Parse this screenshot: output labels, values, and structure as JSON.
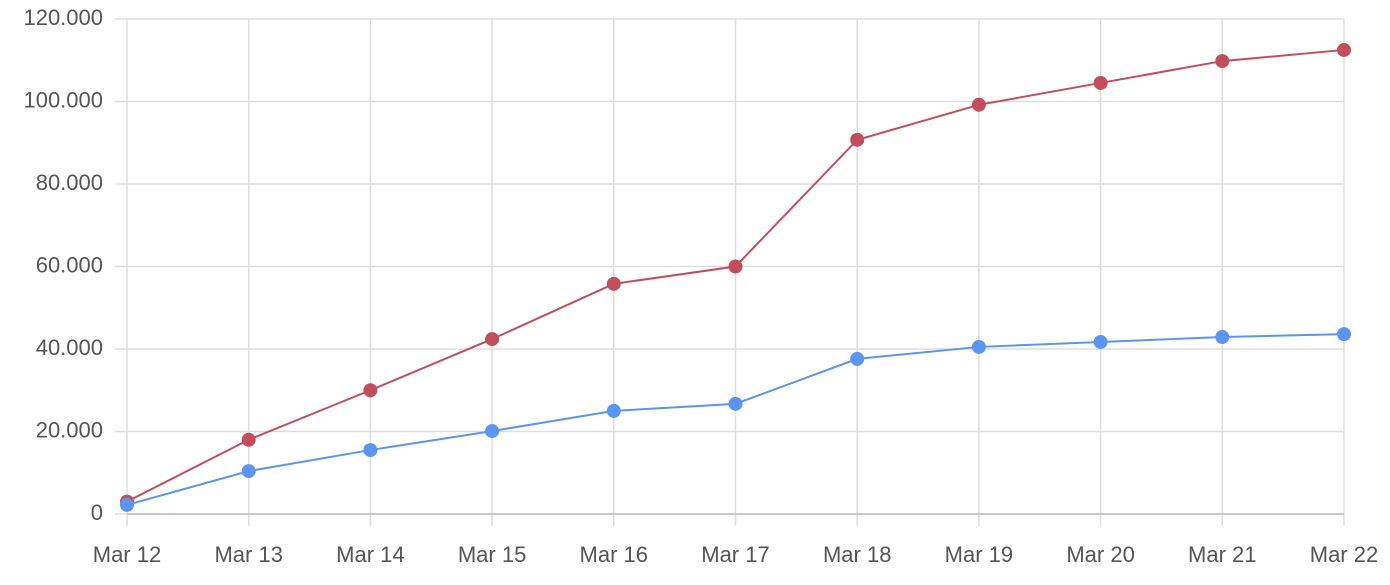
{
  "chart_data": {
    "type": "line",
    "categories": [
      "Mar 12",
      "Mar 13",
      "Mar 14",
      "Mar 15",
      "Mar 16",
      "Mar 17",
      "Mar 18",
      "Mar 19",
      "Mar 20",
      "Mar 21",
      "Mar 22"
    ],
    "series": [
      {
        "color": "#c24d5c",
        "values": [
          3000,
          18000,
          30000,
          42400,
          55800,
          60000,
          90700,
          99200,
          104500,
          109800,
          112500
        ]
      },
      {
        "color": "#5b95f0",
        "values": [
          2200,
          10400,
          15500,
          20100,
          25000,
          26700,
          37600,
          40500,
          41700,
          42900,
          43600
        ]
      }
    ],
    "ylim": [
      0,
      120000
    ],
    "yticks": [
      0,
      {
        "value": 20000,
        "label": "20.000"
      },
      {
        "value": 40000,
        "label": "40.000"
      },
      {
        "value": 60000,
        "label": "60.000"
      },
      {
        "value": 80000,
        "label": "80.000"
      },
      {
        "value": 100000,
        "label": "100.000"
      },
      {
        "value": 120000,
        "label": "120.000"
      }
    ],
    "grid": true
  }
}
